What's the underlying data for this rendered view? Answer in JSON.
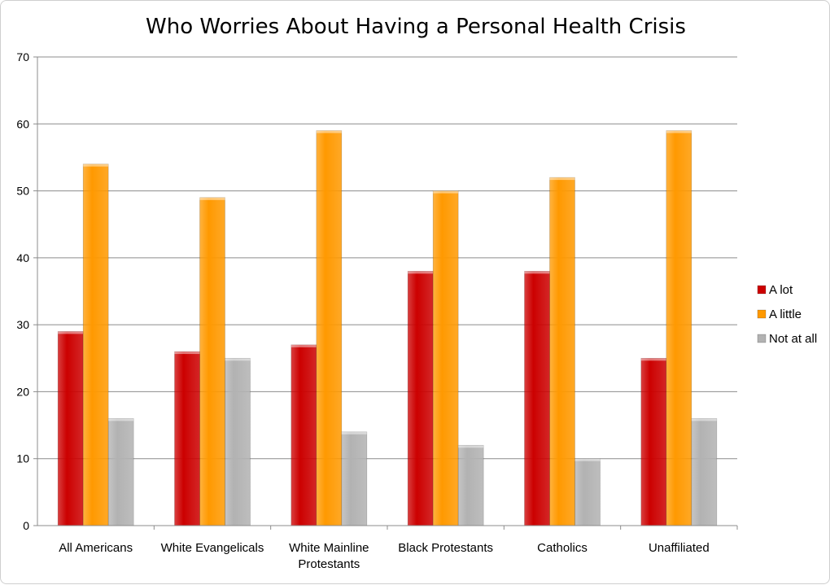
{
  "chart_data": {
    "type": "bar",
    "title": "Who Worries About Having a Personal Health Crisis",
    "categories": [
      "All Americans",
      "White Evangelicals",
      "White Mainline Protestants",
      "Black Protestants",
      "Catholics",
      "Unaffiliated"
    ],
    "category_lines": [
      [
        "All Americans"
      ],
      [
        "White Evangelicals"
      ],
      [
        "White Mainline",
        "Protestants"
      ],
      [
        "Black Protestants"
      ],
      [
        "Catholics"
      ],
      [
        "Unaffiliated"
      ]
    ],
    "series": [
      {
        "name": "A lot",
        "color": "#cc0000",
        "values": [
          29,
          26,
          27,
          38,
          38,
          25
        ]
      },
      {
        "name": "A little",
        "color": "#ff9900",
        "values": [
          54,
          49,
          59,
          50,
          52,
          59
        ]
      },
      {
        "name": "Not at all",
        "color": "#b2b2b2",
        "values": [
          16,
          25,
          14,
          12,
          10,
          16
        ]
      }
    ],
    "ylim": [
      0,
      70
    ],
    "yticks": [
      0,
      10,
      20,
      30,
      40,
      50,
      60,
      70
    ],
    "xlabel": "",
    "ylabel": "",
    "grid": true,
    "legend": "right"
  }
}
